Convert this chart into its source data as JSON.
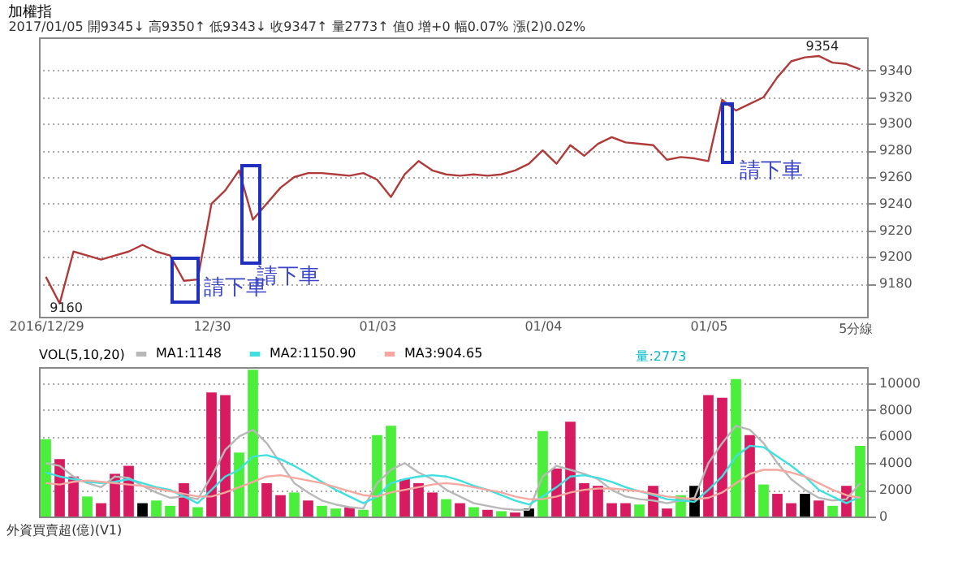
{
  "chart_data": [
    {
      "type": "line",
      "title": "加權指",
      "subtitle": "2017/01/05 開9345↓ 高9350↑ 低9343↓ 收9347↑ 量2773↑ 值0 增+0 幅0.07% 漲(2)0.02%",
      "categories": [
        "2016/12/29",
        null,
        null,
        null,
        null,
        null,
        null,
        null,
        null,
        null,
        null,
        null,
        "12/30",
        null,
        null,
        null,
        null,
        null,
        null,
        null,
        null,
        null,
        null,
        null,
        "01/03",
        null,
        null,
        null,
        null,
        null,
        null,
        null,
        null,
        null,
        null,
        null,
        "01/04",
        null,
        null,
        null,
        null,
        null,
        null,
        null,
        null,
        null,
        null,
        null,
        "01/05",
        null,
        null,
        null,
        null,
        null,
        null,
        null,
        null,
        null,
        null,
        null
      ],
      "series": [
        {
          "color": "#b03a3a",
          "values": [
            9185,
            9165,
            9204,
            9201,
            9198,
            9201,
            9204,
            9209,
            9204,
            9201,
            9182,
            9183,
            9240,
            9250,
            9265,
            9228,
            9240,
            9252,
            9260,
            9263,
            9263,
            9262,
            9261,
            9263,
            9258,
            9245,
            9262,
            9272,
            9265,
            9262,
            9261,
            9262,
            9261,
            9262,
            9265,
            9270,
            9280,
            9270,
            9284,
            9276,
            9285,
            9290,
            9286,
            9285,
            9284,
            9273,
            9275,
            9274,
            9272,
            9318,
            9310,
            9315,
            9320,
            9335,
            9347,
            9350,
            9351,
            9346,
            9345,
            9341
          ]
        }
      ],
      "ylim": [
        9155,
        9365
      ],
      "yticks": [
        9180,
        9200,
        9220,
        9240,
        9260,
        9280,
        9300,
        9320,
        9340
      ],
      "grid": "y",
      "annotations": [
        "9354",
        "9160",
        "請下車",
        "請下車",
        "請下車",
        "5分線"
      ]
    },
    {
      "type": "bar",
      "legend_title": "VOL(5,10,20)",
      "legend": "top left",
      "tick_labels": "y",
      "categories": [
        null,
        null,
        null,
        null,
        null,
        null,
        null,
        null,
        null,
        null,
        null,
        null,
        null,
        null,
        null,
        null,
        null,
        null,
        null,
        null,
        null,
        null,
        null,
        null,
        null,
        null,
        null,
        null,
        null,
        null,
        null,
        null,
        null,
        null,
        null,
        null,
        null,
        null,
        null,
        null,
        null,
        null,
        null,
        null,
        null,
        null,
        null,
        null,
        null,
        null,
        null,
        null,
        null,
        null,
        null,
        null,
        null,
        null,
        null,
        null
      ],
      "series": [
        {
          "values": [
            5800,
            4300,
            3000,
            1500,
            1000,
            3200,
            3800,
            1000,
            1200,
            800,
            2500,
            700,
            9300,
            9100,
            4800,
            11000,
            2500,
            1600,
            1800,
            1200,
            800,
            600,
            700,
            500,
            6100,
            6800,
            2800,
            2500,
            1800,
            1300,
            1000,
            700,
            500,
            400,
            300,
            600,
            6400,
            3600,
            7100,
            2500,
            2300,
            1000,
            1000,
            900,
            2300,
            600,
            1600,
            2300,
            9100,
            8900,
            10300,
            6100,
            2400,
            1700,
            1000,
            1700,
            1200,
            800,
            2300,
            5300
          ],
          "colors": [
            "#4cee3c",
            "#d81b60",
            "#d81b60",
            "#4cee3c",
            "#d81b60",
            "#d81b60",
            "#d81b60",
            "#000000",
            "#4cee3c",
            "#4cee3c",
            "#d81b60",
            "#4cee3c",
            "#d81b60",
            "#d81b60",
            "#4cee3c",
            "#4cee3c",
            "#d81b60",
            "#d81b60",
            "#4cee3c",
            "#d81b60",
            "#4cee3c",
            "#4cee3c",
            "#d81b60",
            "#4cee3c",
            "#4cee3c",
            "#4cee3c",
            "#d81b60",
            "#d81b60",
            "#d81b60",
            "#4cee3c",
            "#d81b60",
            "#4cee3c",
            "#d81b60",
            "#4cee3c",
            "#d81b60",
            "#000000",
            "#4cee3c",
            "#d81b60",
            "#d81b60",
            "#d81b60",
            "#d81b60",
            "#d81b60",
            "#d81b60",
            "#4cee3c",
            "#d81b60",
            "#d81b60",
            "#4cee3c",
            "#000000",
            "#d81b60",
            "#d81b60",
            "#4cee3c",
            "#d81b60",
            "#4cee3c",
            "#d81b60",
            "#d81b60",
            "#000000",
            "#d81b60",
            "#4cee3c",
            "#d81b60",
            "#4cee3c"
          ]
        },
        {
          "name": "MA1:1148",
          "type": "line",
          "color": "#b8b8b8",
          "values": [
            4000,
            3800,
            3000,
            2500,
            2200,
            3000,
            2900,
            2300,
            1800,
            1400,
            1500,
            1300,
            3000,
            5000,
            6000,
            6500,
            5500,
            4000,
            2500,
            1800,
            1200,
            900,
            700,
            600,
            2500,
            3500,
            4000,
            3300,
            2800,
            2000,
            1500,
            1000,
            800,
            600,
            500,
            500,
            3000,
            3800,
            3500,
            3200,
            2800,
            2000,
            1500,
            1300,
            1200,
            1000,
            1200,
            1400,
            4000,
            5500,
            6800,
            6500,
            5500,
            4000,
            2800,
            2000,
            1400,
            1200,
            1300,
            2500
          ]
        },
        {
          "name": "MA2:1150.90",
          "type": "line",
          "color": "#40e0e0",
          "values": [
            3300,
            3000,
            2800,
            2600,
            2500,
            2600,
            2800,
            2500,
            2200,
            2000,
            1500,
            1000,
            2000,
            3000,
            3500,
            4500,
            4600,
            4300,
            3800,
            3200,
            2600,
            2000,
            1500,
            1000,
            1500,
            2500,
            2800,
            3000,
            3100,
            3000,
            2700,
            2300,
            2000,
            1600,
            1200,
            900,
            1500,
            2200,
            3000,
            3100,
            2900,
            2600,
            2200,
            1900,
            1600,
            1300,
            1200,
            1100,
            2000,
            3000,
            4500,
            5300,
            5200,
            4500,
            3800,
            3000,
            2000,
            1500,
            1000,
            1500
          ]
        },
        {
          "name": "MA3:904.65",
          "type": "line",
          "color": "#f4a8a0",
          "values": [
            2500,
            2400,
            2600,
            2700,
            2600,
            2500,
            2400,
            2300,
            2100,
            1900,
            1700,
            1500,
            1500,
            1800,
            2200,
            2600,
            3000,
            3100,
            2900,
            2700,
            2500,
            2200,
            1900,
            1600,
            1500,
            1800,
            2000,
            2200,
            2400,
            2500,
            2400,
            2200,
            2000,
            1800,
            1500,
            1300,
            1300,
            1500,
            1800,
            2000,
            2100,
            2100,
            2000,
            1900,
            1700,
            1500,
            1400,
            1300,
            1400,
            1800,
            2500,
            3200,
            3500,
            3500,
            3300,
            3000,
            2500,
            2000,
            1600,
            1400
          ]
        }
      ],
      "ylim": [
        0,
        11200
      ],
      "yticks": [
        0,
        2000,
        4000,
        6000,
        8000,
        10000
      ],
      "grid": "y",
      "annotations": [
        "外資買賣超(億)(V1)",
        "量:2773"
      ]
    }
  ]
}
